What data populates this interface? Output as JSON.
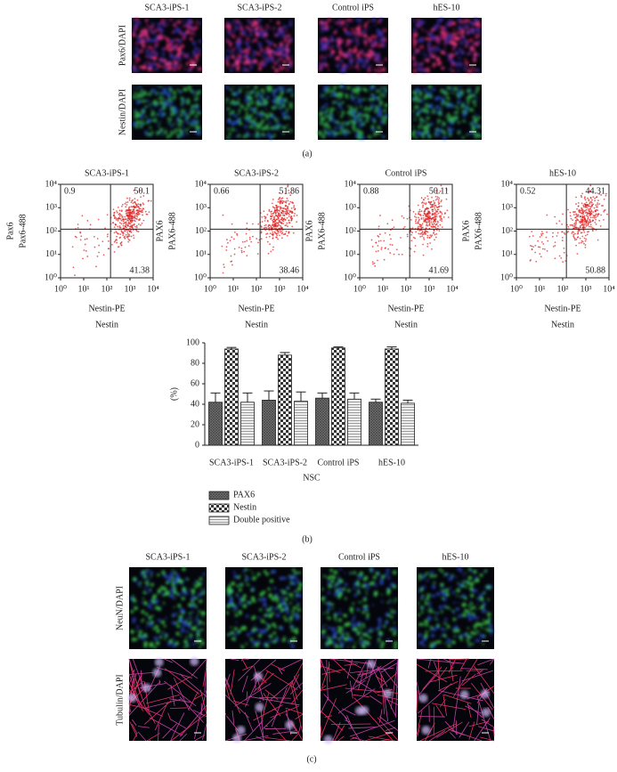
{
  "panel_a": {
    "columns": [
      "SCA3-iPS-1",
      "SCA3-iPS-2",
      "Control iPS",
      "hES-10"
    ],
    "rows": [
      "Pax6/DAPI",
      "Nestin/DAPI"
    ],
    "label": "(a)"
  },
  "flow": {
    "x_label_1": "Nestin-PE",
    "x_label_2": "Nestin",
    "xscale": "log",
    "xlim": [
      1,
      10000
    ],
    "ylim": [
      1,
      10000
    ],
    "xticks": [
      {
        "value": 1,
        "label": "10⁰"
      },
      {
        "value": 10,
        "label": "10¹"
      },
      {
        "value": 100,
        "label": "10²"
      },
      {
        "value": 1000,
        "label": "10³"
      },
      {
        "value": 10000,
        "label": "10⁴"
      }
    ],
    "yticks": [
      {
        "value": 1,
        "label": "10⁰"
      },
      {
        "value": 10,
        "label": "10¹"
      },
      {
        "value": 100,
        "label": "10²"
      },
      {
        "value": 1000,
        "label": "10³"
      },
      {
        "value": 10000,
        "label": "10⁴"
      }
    ],
    "plots": [
      {
        "title": "SCA3-iPS-1",
        "y_label_1": "Pax6",
        "y_label_2": "Pax6-488",
        "upper_left": 0.9,
        "upper_right": 50.1,
        "lower_right": 41.38
      },
      {
        "title": "SCA3-iPS-2",
        "y_label_1": "PAX6",
        "y_label_2": "PAX6-488",
        "upper_left": 0.66,
        "upper_right": 51.86,
        "lower_right": 38.46
      },
      {
        "title": "Control iPS",
        "y_label_1": "PAX6",
        "y_label_2": "PAX6-488",
        "upper_left": 0.88,
        "upper_right": 50.11,
        "lower_right": 41.69
      },
      {
        "title": "hES-10",
        "y_label_1": "PAX6",
        "y_label_2": "PAX6-488",
        "upper_left": 0.52,
        "upper_right": 44.31,
        "lower_right": 50.88
      }
    ]
  },
  "chart_data": {
    "type": "bar",
    "categories": [
      "SCA3-iPS-1",
      "SCA3-iPS-2",
      "Control iPS",
      "hES-10"
    ],
    "series": [
      {
        "name": "PAX6",
        "values": [
          42,
          44,
          46,
          42
        ],
        "errors": [
          9,
          9,
          5,
          3
        ]
      },
      {
        "name": "Nestin",
        "values": [
          94,
          88,
          95,
          94
        ],
        "errors": [
          1.5,
          2.5,
          1,
          2
        ]
      },
      {
        "name": "Double positive",
        "values": [
          42,
          43,
          45,
          41
        ],
        "errors": [
          9,
          9,
          6,
          3
        ]
      }
    ],
    "ylim": [
      0,
      100
    ],
    "yticks": [
      0,
      20,
      40,
      60,
      80,
      100
    ],
    "y_label": "(%)",
    "x_label": "NSC"
  },
  "panel_b_label": "(b)",
  "panel_c": {
    "columns": [
      "SCA3-iPS-1",
      "SCA3-iPS-2",
      "Control iPS",
      "hES-10"
    ],
    "rows": [
      "NeuN/DAPI",
      "Tubulin/DAPI"
    ],
    "label": "(c)"
  }
}
